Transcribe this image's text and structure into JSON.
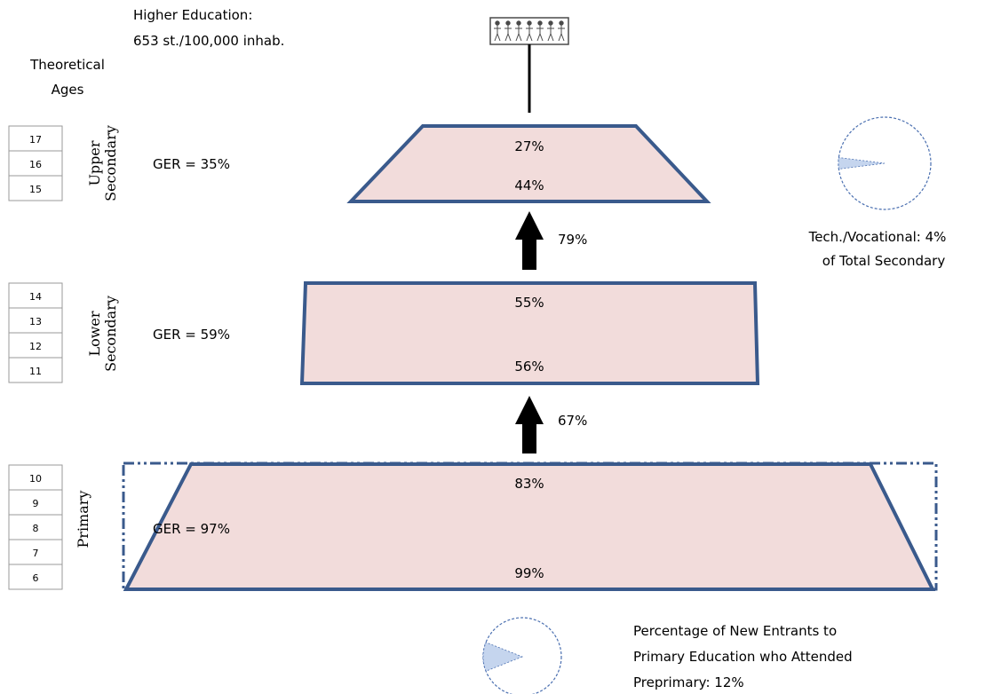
{
  "higher_education": {
    "title": "Higher Education:",
    "value": "653 st./100,000 inhab."
  },
  "ages_heading": [
    "Theoretical",
    "Ages"
  ],
  "levels": [
    {
      "id": "upper-secondary",
      "name_lines": [
        "Upper",
        "Secondary"
      ],
      "ages": [
        "17",
        "16",
        "15"
      ],
      "ger": "GER = 35%",
      "top_value": "27%",
      "bottom_value": "44%"
    },
    {
      "id": "lower-secondary",
      "name_lines": [
        "Lower",
        "Secondary"
      ],
      "ages": [
        "14",
        "13",
        "12",
        "11"
      ],
      "ger": "GER = 59%",
      "top_value": "55%",
      "bottom_value": "56%"
    },
    {
      "id": "primary",
      "name_lines": [
        "Primary"
      ],
      "ages": [
        "10",
        "9",
        "8",
        "7",
        "6"
      ],
      "ger": "GER = 97%",
      "top_value": "83%",
      "bottom_value": "99%"
    }
  ],
  "transitions": [
    {
      "id": "lower-to-upper",
      "value": "79%"
    },
    {
      "id": "primary-to-lower",
      "value": "67%"
    }
  ],
  "tech_vocational": {
    "lines": [
      "Tech./Vocational: 4%",
      "of Total Secondary"
    ],
    "percent": 4
  },
  "preprimary": {
    "lines": [
      "Percentage of New Entrants to",
      "Primary Education who Attended",
      "Preprimary: 12%"
    ],
    "percent": 12
  },
  "colors": {
    "shape_fill": "#f2dcdb",
    "shape_stroke": "#3a5a8c",
    "pie_slice": "#c5d5ee",
    "pie_stroke": "#4a6fb0"
  }
}
